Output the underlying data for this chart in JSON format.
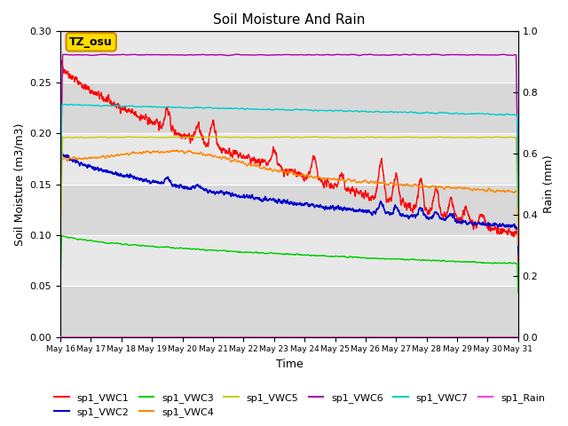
{
  "title": "Soil Moisture And Rain",
  "xlabel": "Time",
  "ylabel_left": "Soil Moisture (m3/m3)",
  "ylabel_right": "Rain (mm)",
  "ylim_left": [
    0.0,
    0.3
  ],
  "ylim_right": [
    0.0,
    1.0
  ],
  "x_tick_labels": [
    "May 16",
    "May 17",
    "May 18",
    "May 19",
    "May 20",
    "May 21",
    "May 22",
    "May 23",
    "May 24",
    "May 25",
    "May 26",
    "May 27",
    "May 28",
    "May 29",
    "May 30",
    "May 31"
  ],
  "yticks_left": [
    0.0,
    0.05,
    0.1,
    0.15,
    0.2,
    0.25,
    0.3
  ],
  "yticks_right": [
    0.0,
    0.2,
    0.4,
    0.6,
    0.8,
    1.0
  ],
  "band_colors": [
    "#d8d8d8",
    "#e8e8e8"
  ],
  "series": {
    "sp1_VWC1": {
      "color": "#ff0000"
    },
    "sp1_VWC2": {
      "color": "#0000cc"
    },
    "sp1_VWC3": {
      "color": "#00cc00"
    },
    "sp1_VWC4": {
      "color": "#ff8800"
    },
    "sp1_VWC5": {
      "color": "#cccc00"
    },
    "sp1_VWC6": {
      "color": "#aa00aa"
    },
    "sp1_VWC7": {
      "color": "#00cccc"
    },
    "sp1_Rain": {
      "color": "#ff44cc"
    }
  },
  "annotation_text": "TZ_osu",
  "annotation_facecolor": "#ffdd00",
  "annotation_edgecolor": "#cc8800",
  "title_fontsize": 11,
  "axis_fontsize": 9,
  "tick_fontsize": 8,
  "legend_fontsize": 8
}
